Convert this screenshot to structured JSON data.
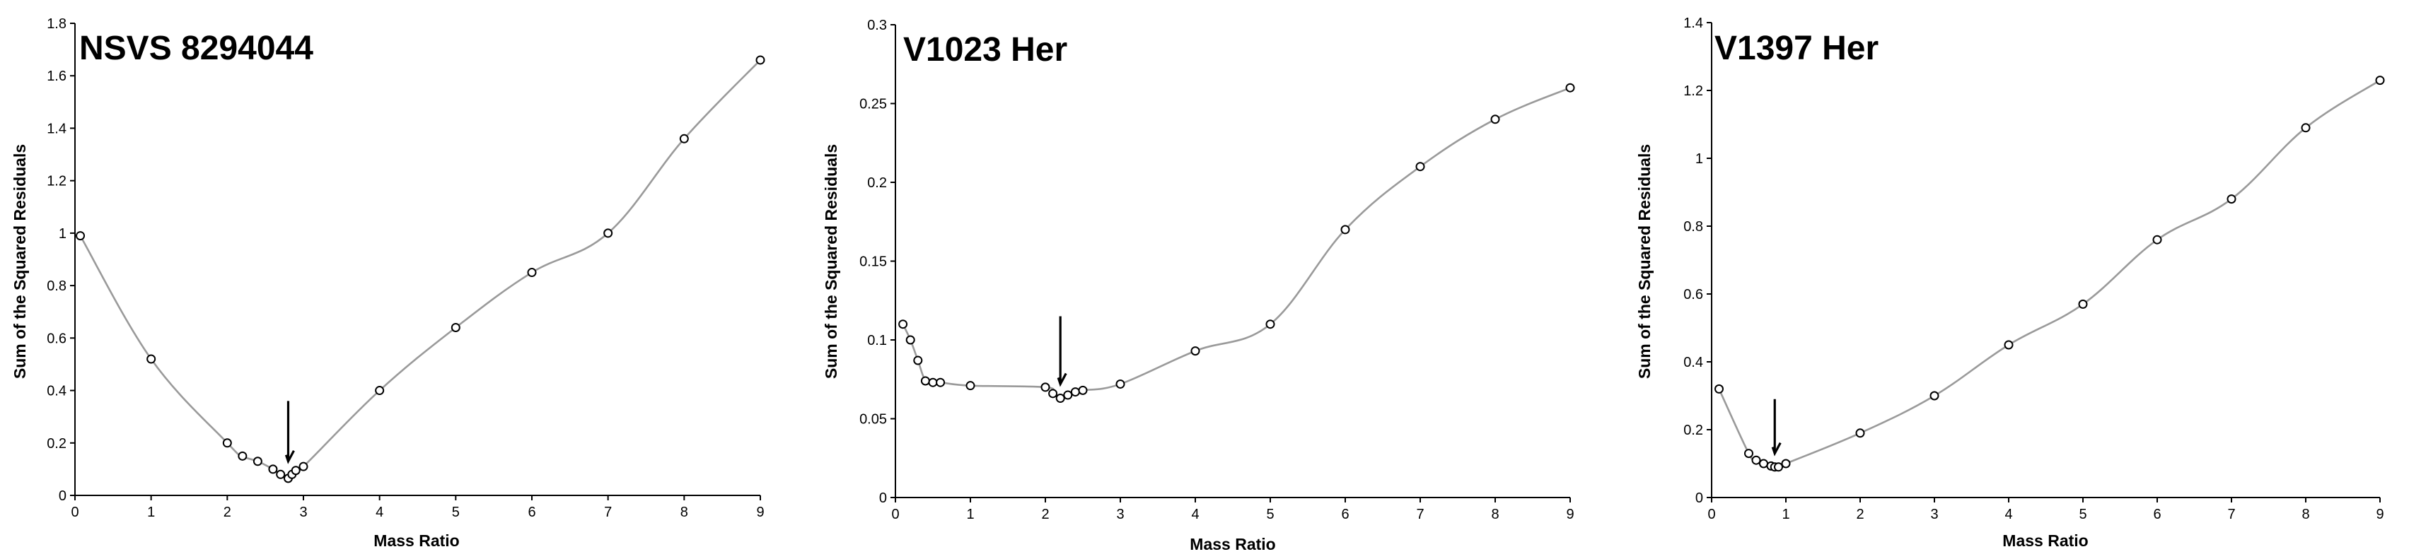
{
  "chart_data": [
    {
      "type": "line",
      "title": "NSVS 8294044",
      "xlabel": "Mass Ratio",
      "ylabel": "Sum of the Squared Residuals",
      "xlim": [
        0,
        9
      ],
      "ylim": [
        0,
        1.8
      ],
      "xticks": [
        "0",
        "1",
        "2",
        "3",
        "4",
        "5",
        "6",
        "7",
        "8",
        "9"
      ],
      "yticks": [
        "0",
        "0.2",
        "0.4",
        "0.6",
        "0.8",
        "1",
        "1.2",
        "1.4",
        "1.6",
        "1.8"
      ],
      "x": [
        0.07,
        1,
        2,
        2.2,
        2.4,
        2.6,
        2.7,
        2.8,
        2.85,
        2.9,
        3,
        4,
        5,
        6,
        7,
        8,
        9
      ],
      "y": [
        0.99,
        0.52,
        0.2,
        0.15,
        0.13,
        0.1,
        0.08,
        0.065,
        0.08,
        0.095,
        0.11,
        0.4,
        0.64,
        0.85,
        1.0,
        1.36,
        1.66
      ],
      "arrow": {
        "x": 2.8,
        "y_top": 0.36,
        "y_bottom": 0.13
      },
      "grid": false,
      "legend": "none"
    },
    {
      "type": "line",
      "title": "V1023 Her",
      "xlabel": "Mass Ratio",
      "ylabel": "Sum of the Squared Residuals",
      "xlim": [
        0,
        9
      ],
      "ylim": [
        0,
        0.3
      ],
      "xticks": [
        "0",
        "1",
        "2",
        "3",
        "4",
        "5",
        "6",
        "7",
        "8",
        "9"
      ],
      "yticks": [
        "0",
        "0.05",
        "0.1",
        "0.15",
        "0.2",
        "0.25",
        "0.3"
      ],
      "x": [
        0.1,
        0.2,
        0.3,
        0.4,
        0.5,
        0.6,
        1,
        2,
        2.1,
        2.2,
        2.3,
        2.4,
        2.5,
        3,
        4,
        5,
        6,
        7,
        8,
        9
      ],
      "y": [
        0.11,
        0.1,
        0.087,
        0.074,
        0.073,
        0.073,
        0.071,
        0.07,
        0.066,
        0.063,
        0.065,
        0.067,
        0.068,
        0.072,
        0.093,
        0.11,
        0.17,
        0.21,
        0.24,
        0.26
      ],
      "arrow": {
        "x": 2.2,
        "y_top": 0.115,
        "y_bottom": 0.072
      },
      "grid": false,
      "legend": "none"
    },
    {
      "type": "line",
      "title": "V1397 Her",
      "xlabel": "Mass Ratio",
      "ylabel": "Sum of the Squared Residuals",
      "xlim": [
        0,
        9
      ],
      "ylim": [
        0,
        1.4
      ],
      "xticks": [
        "0",
        "1",
        "2",
        "3",
        "4",
        "5",
        "6",
        "7",
        "8",
        "9"
      ],
      "yticks": [
        "0",
        "0.2",
        "0.4",
        "0.6",
        "0.8",
        "1",
        "1.2",
        "1.4"
      ],
      "x": [
        0.1,
        0.5,
        0.6,
        0.7,
        0.8,
        0.85,
        0.9,
        1,
        2,
        3,
        4,
        5,
        6,
        7,
        8,
        9
      ],
      "y": [
        0.32,
        0.13,
        0.11,
        0.1,
        0.093,
        0.09,
        0.09,
        0.1,
        0.19,
        0.3,
        0.45,
        0.57,
        0.76,
        0.88,
        1.09,
        1.23
      ],
      "arrow": {
        "x": 0.85,
        "y_top": 0.29,
        "y_bottom": 0.13
      },
      "grid": false,
      "legend": "none"
    }
  ]
}
